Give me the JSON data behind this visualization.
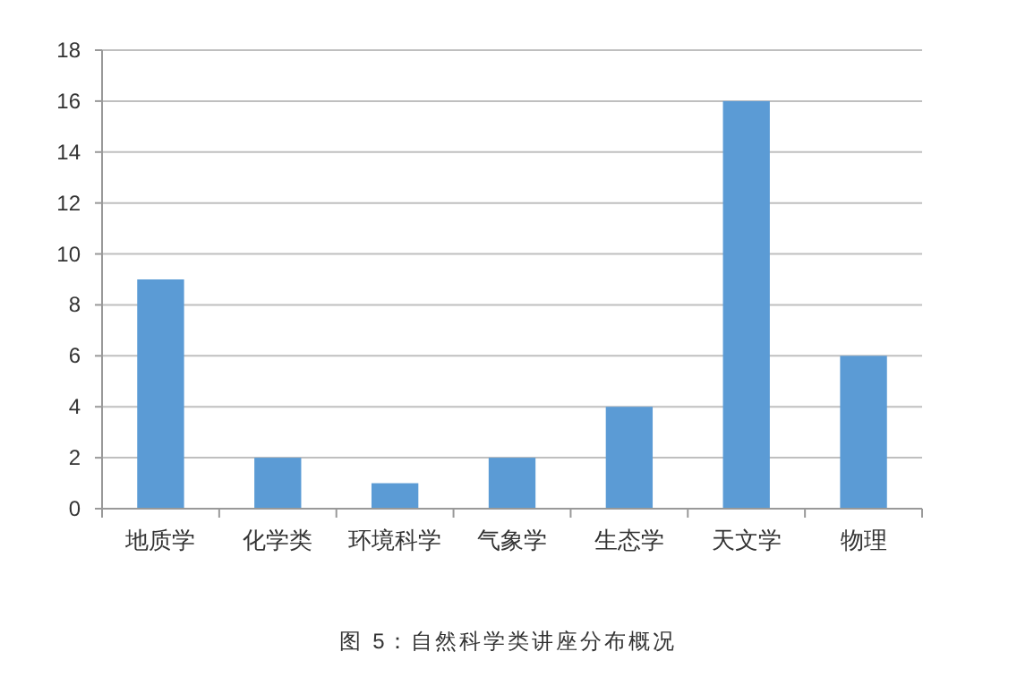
{
  "chart_data": {
    "type": "bar",
    "categories": [
      "地质学",
      "化学类",
      "环境科学",
      "气象学",
      "生态学",
      "天文学",
      "物理"
    ],
    "values": [
      9,
      2,
      1,
      2,
      4,
      16,
      6
    ],
    "color": "#5b9bd5",
    "ylim": [
      0,
      18
    ],
    "yticks": [
      0,
      2,
      4,
      6,
      8,
      10,
      12,
      14,
      16,
      18
    ],
    "grid": "y",
    "annotations": [
      "图 5：自然科学类讲座分布概况"
    ]
  }
}
